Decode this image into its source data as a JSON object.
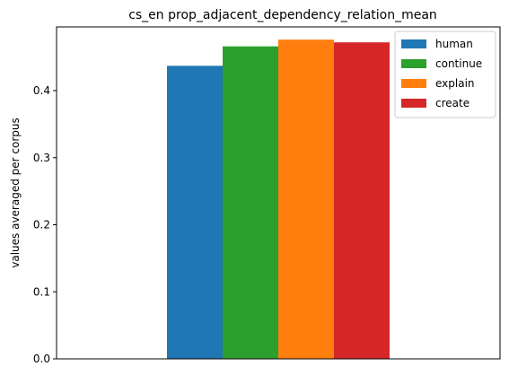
{
  "chart_data": {
    "type": "bar",
    "title": "cs_en prop_adjacent_dependency_relation_mean",
    "xlabel": "",
    "ylabel": "values averaged per corpus",
    "ylim": [
      0,
      0.495
    ],
    "yticks": [
      {
        "value": 0.0,
        "label": "0.0"
      },
      {
        "value": 0.1,
        "label": "0.1"
      },
      {
        "value": 0.2,
        "label": "0.2"
      },
      {
        "value": 0.3,
        "label": "0.3"
      },
      {
        "value": 0.4,
        "label": "0.4"
      }
    ],
    "categories": [
      ""
    ],
    "series": [
      {
        "name": "human",
        "values": [
          0.437
        ],
        "color": "#1f77b4"
      },
      {
        "name": "continue",
        "values": [
          0.466
        ],
        "color": "#2ca02c"
      },
      {
        "name": "explain",
        "values": [
          0.476
        ],
        "color": "#ff7f0e"
      },
      {
        "name": "create",
        "values": [
          0.472
        ],
        "color": "#d62728"
      }
    ],
    "grid": false,
    "legend_position": "top-right"
  }
}
